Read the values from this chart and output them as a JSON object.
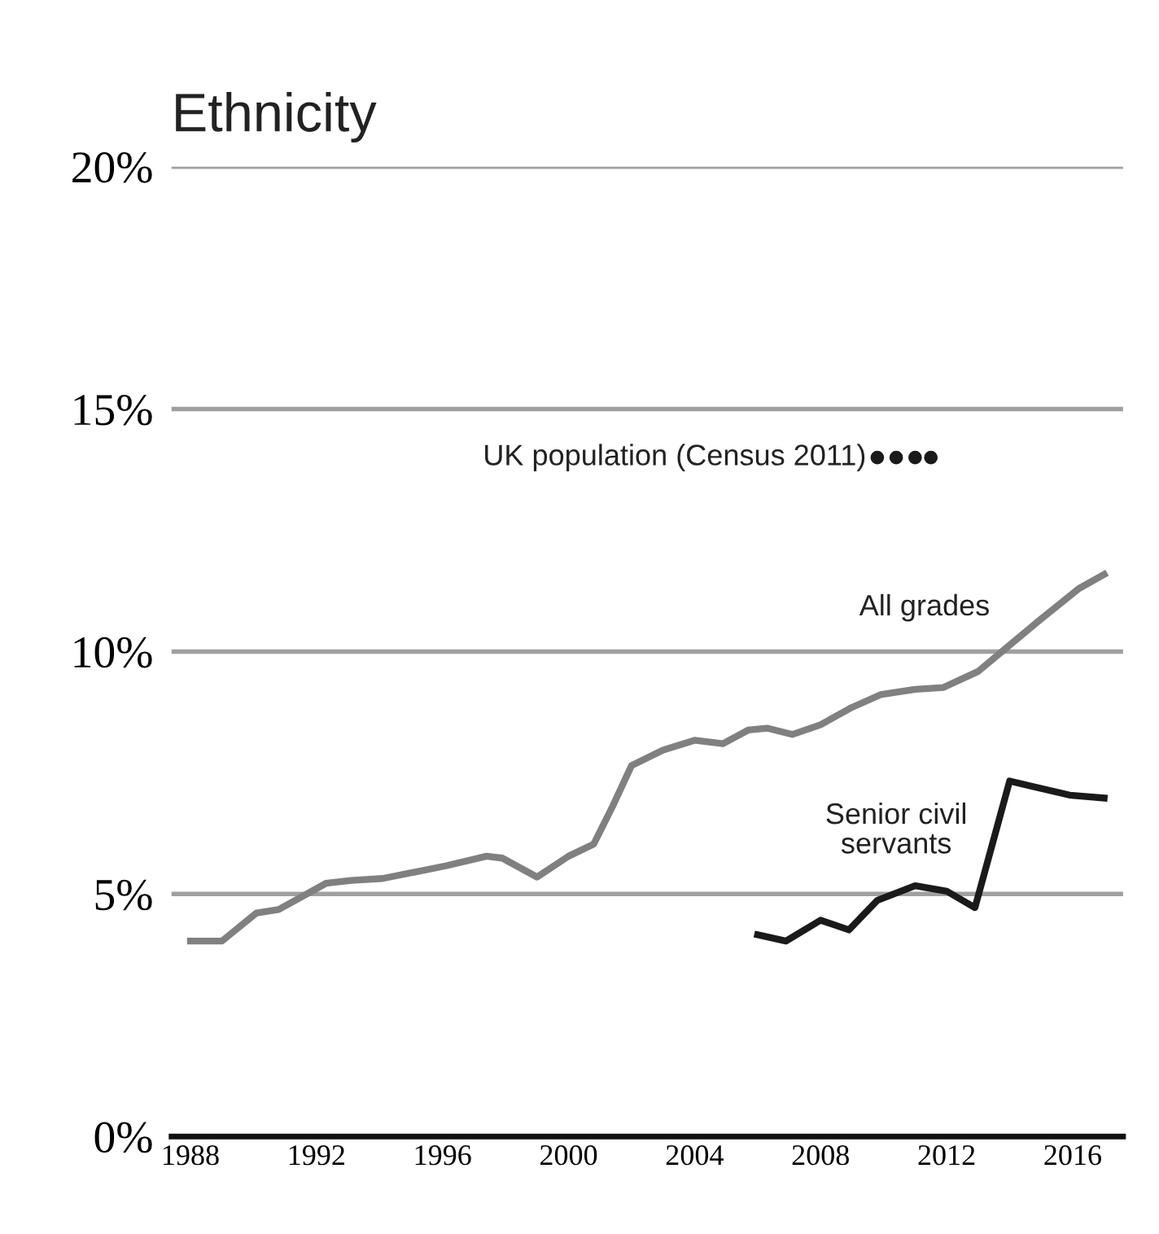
{
  "chart_data": {
    "type": "line",
    "title": "Ethnicity",
    "xlim": [
      1987.4,
      2017.6
    ],
    "xticks": [
      1988,
      1992,
      1996,
      2000,
      2004,
      2008,
      2012,
      2016
    ],
    "ylim": [
      0,
      20
    ],
    "yticks": [
      {
        "value": 0,
        "label": "0%"
      },
      {
        "value": 5,
        "label": "5%"
      },
      {
        "value": 10,
        "label": "10%"
      },
      {
        "value": 15,
        "label": "15%"
      },
      {
        "value": 20,
        "label": "20%"
      }
    ],
    "grid": "y",
    "legend": false,
    "line_style": "solid",
    "marker": "none",
    "series": [
      {
        "name": "All grades",
        "color": "#808080",
        "x": [
          1988,
          1989,
          1990.1,
          1990.8,
          1992.3,
          1993.1,
          1994.1,
          1996.1,
          1997.4,
          1997.9,
          1999.0,
          2000.0,
          2000.8,
          2001.4,
          2002.0,
          2003.0,
          2004.0,
          2004.9,
          2005.7,
          2006.3,
          2007.1,
          2008.0,
          2009.0,
          2009.9,
          2011.0,
          2011.9,
          2013.0,
          2013.7,
          2014.9,
          2016.2,
          2017.0
        ],
        "values": [
          4.03,
          4.03,
          4.61,
          4.68,
          5.22,
          5.28,
          5.32,
          5.58,
          5.78,
          5.74,
          5.35,
          5.78,
          6.03,
          6.81,
          7.65,
          7.97,
          8.17,
          8.1,
          8.38,
          8.42,
          8.29,
          8.49,
          8.85,
          9.11,
          9.22,
          9.26,
          9.59,
          9.97,
          10.62,
          11.3,
          11.59
        ]
      },
      {
        "name": "Senior civil\nservants",
        "color": "#1a1a1a",
        "x": [
          2006.0,
          2006.9,
          2008.0,
          2008.9,
          2009.8,
          2011.0,
          2012.0,
          2012.9,
          2014.0,
          2015.9,
          2017.0
        ],
        "values": [
          4.16,
          4.03,
          4.46,
          4.26,
          4.87,
          5.17,
          5.06,
          4.72,
          7.33,
          7.04,
          6.98
        ]
      },
      {
        "name": "UK population (Census 2011)",
        "type": "scatter",
        "marker": "circle",
        "color": "#1a1a1a",
        "x": [
          2009.8,
          2010.4,
          2011.0,
          2011.5
        ],
        "values": [
          14,
          14,
          14,
          14
        ]
      }
    ]
  }
}
